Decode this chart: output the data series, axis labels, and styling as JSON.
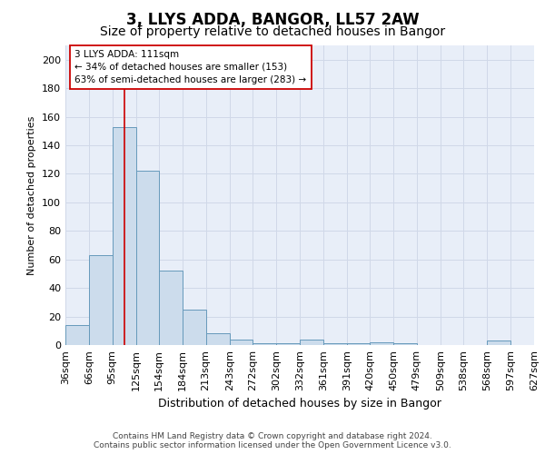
{
  "title": "3, LLYS ADDA, BANGOR, LL57 2AW",
  "subtitle": "Size of property relative to detached houses in Bangor",
  "xlabel": "Distribution of detached houses by size in Bangor",
  "ylabel": "Number of detached properties",
  "bin_edges": [
    36,
    66,
    95,
    125,
    154,
    184,
    213,
    243,
    272,
    302,
    332,
    361,
    391,
    420,
    450,
    479,
    509,
    538,
    568,
    597,
    627
  ],
  "bar_heights": [
    14,
    63,
    153,
    122,
    52,
    25,
    8,
    4,
    1,
    1,
    4,
    1,
    1,
    2,
    1,
    0,
    0,
    0,
    3,
    0
  ],
  "bar_facecolor": "#ccdcec",
  "bar_edgecolor": "#6699bb",
  "bar_linewidth": 0.7,
  "vline_x": 111,
  "vline_color": "#cc0000",
  "vline_linewidth": 1.2,
  "ylim": [
    0,
    210
  ],
  "yticks": [
    0,
    20,
    40,
    60,
    80,
    100,
    120,
    140,
    160,
    180,
    200
  ],
  "annotation_line1": "3 LLYS ADDA: 111sqm",
  "annotation_line2": "← 34% of detached houses are smaller (153)",
  "annotation_line3": "63% of semi-detached houses are larger (283) →",
  "annotation_box_color": "#ffffff",
  "annotation_box_edgecolor": "#cc0000",
  "annotation_fontsize": 7.5,
  "grid_color": "#d0d8e8",
  "background_color": "#e8eef8",
  "footer_text": "Contains HM Land Registry data © Crown copyright and database right 2024.\nContains public sector information licensed under the Open Government Licence v3.0.",
  "title_fontsize": 12,
  "subtitle_fontsize": 10,
  "xlabel_fontsize": 9,
  "ylabel_fontsize": 8,
  "tick_fontsize": 8,
  "footer_fontsize": 6.5
}
